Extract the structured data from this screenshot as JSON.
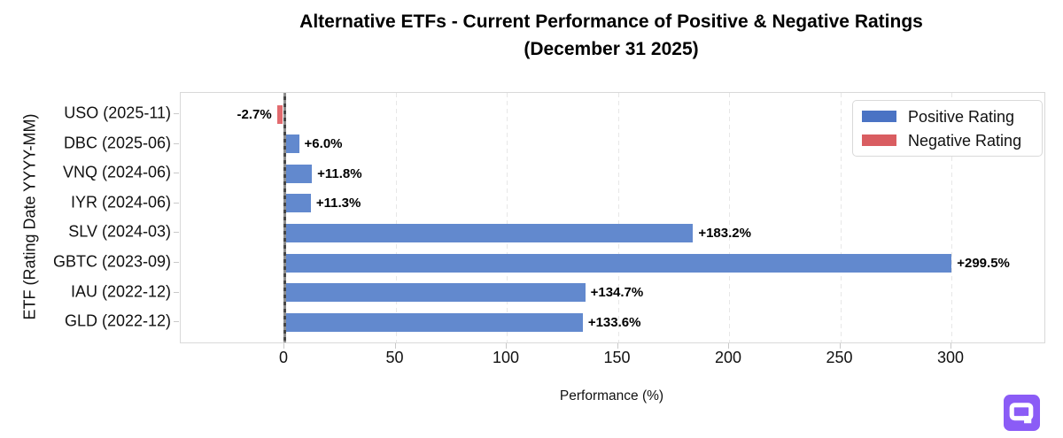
{
  "title": {
    "line1": "Alternative ETFs - Current Performance of Positive & Negative Ratings",
    "line2": "(December 31 2025)"
  },
  "axes": {
    "y_label": "ETF (Rating Date YYYY-MM)",
    "x_label": "Performance (%)"
  },
  "legend": {
    "items": [
      {
        "name": "positive",
        "label": "Positive Rating",
        "color": "#4a73c4"
      },
      {
        "name": "negative",
        "label": "Negative Rating",
        "color": "#d95d61"
      }
    ]
  },
  "colors": {
    "positive_bar": "#6289ce",
    "negative_bar": "#e26b6f",
    "zero_line": "#474747",
    "grid": "#e7e7e7",
    "plot_border": "#d9d9d9",
    "logo_purple": "#8b5cf6"
  },
  "branding": {
    "logo_icon": "q-speech-bubble-logo"
  },
  "chart_data": {
    "type": "bar",
    "orientation": "horizontal",
    "title": "Alternative ETFs - Current Performance of Positive & Negative Ratings (December 31 2025)",
    "xlabel": "Performance (%)",
    "ylabel": "ETF (Rating Date YYYY-MM)",
    "categories": [
      "USO (2025-11)",
      "DBC (2025-06)",
      "VNQ (2024-06)",
      "IYR (2024-06)",
      "SLV (2024-03)",
      "GBTC (2023-09)",
      "IAU (2022-12)",
      "GLD (2022-12)"
    ],
    "values": [
      -2.7,
      6.0,
      11.8,
      11.3,
      183.2,
      299.5,
      134.7,
      133.6
    ],
    "value_labels": [
      "-2.7%",
      "+6.0%",
      "+11.8%",
      "+11.3%",
      "+183.2%",
      "+299.5%",
      "+134.7%",
      "+133.6%"
    ],
    "ratings": [
      "negative",
      "positive",
      "positive",
      "positive",
      "positive",
      "positive",
      "positive",
      "positive"
    ],
    "x_ticks": [
      0,
      50,
      100,
      150,
      200,
      250,
      300
    ],
    "xlim": [
      -46.6,
      341.8
    ],
    "grid": "vertical dashed",
    "legend_position": "upper right"
  }
}
